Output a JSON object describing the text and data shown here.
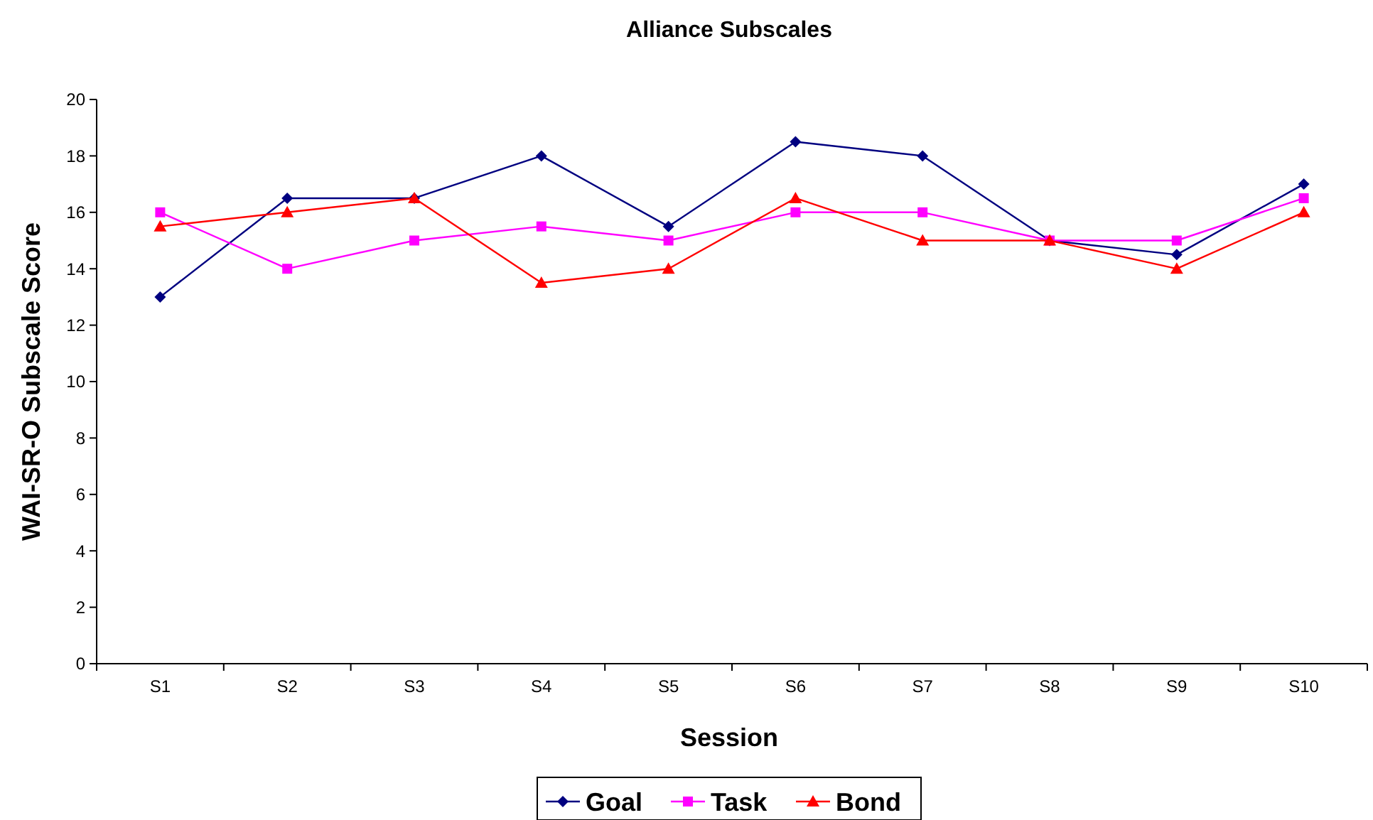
{
  "chart_data": {
    "type": "line",
    "title": "Alliance Subscales",
    "xlabel": "Session",
    "ylabel": "WAI-SR-O Subscale Score",
    "categories": [
      "S1",
      "S2",
      "S3",
      "S4",
      "S5",
      "S6",
      "S7",
      "S8",
      "S9",
      "S10"
    ],
    "series": [
      {
        "name": "Goal",
        "color": "#000080",
        "marker": "diamond",
        "values": [
          13,
          16.5,
          16.5,
          18,
          15.5,
          18.5,
          18,
          15,
          14.5,
          17
        ]
      },
      {
        "name": "Task",
        "color": "#ff00ff",
        "marker": "square",
        "values": [
          16,
          14,
          15,
          15.5,
          15,
          16,
          16,
          15,
          15,
          16.5
        ]
      },
      {
        "name": "Bond",
        "color": "#ff0000",
        "marker": "triangle",
        "values": [
          15.5,
          16,
          16.5,
          13.5,
          14,
          16.5,
          15,
          15,
          14,
          16
        ]
      }
    ],
    "ylim": [
      0,
      20
    ],
    "yticks": [
      0,
      2,
      4,
      6,
      8,
      10,
      12,
      14,
      16,
      18,
      20
    ],
    "grid": false,
    "legend": "bottom",
    "line_style": "solid"
  }
}
